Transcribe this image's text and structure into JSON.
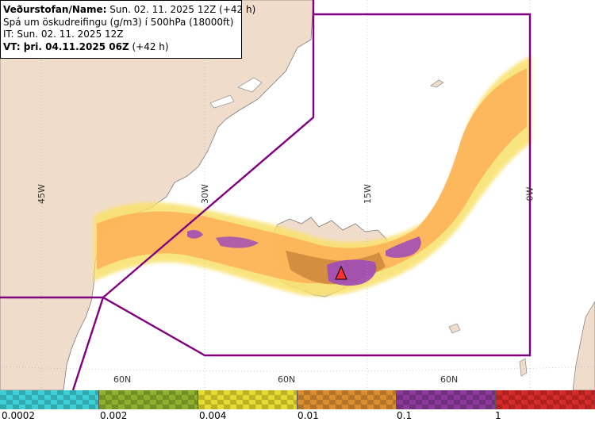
{
  "info": {
    "line1_label": "Veðurstofan/Name:",
    "line1_value": " Sun. 02. 11. 2025 12Z (+42 h)",
    "line2": "Spá um öskudreifingu (g/m3) í 500hPa (18000ft)",
    "line3": "IT: Sun. 02. 11. 2025 12Z",
    "line4_label": "VT: þri. 04.11.2025 06Z",
    "line4_value": " (+42 h)"
  },
  "map": {
    "longitude_labels": [
      "45W",
      "30W",
      "15W",
      "0W"
    ],
    "latitude_labels": [
      "60N",
      "60N",
      "60N"
    ],
    "colors": {
      "land": "#f0dccb",
      "sea": "#ffffff",
      "fir_boundary": "#800080",
      "ash_low": "#f9e16a",
      "ash_mid": "#fdb45a",
      "ash_high": "#cf8a3c",
      "ash_very_high": "#a24fb5"
    }
  },
  "legend": {
    "ticks": [
      "0.0002",
      "0.002",
      "0.004",
      "0.01",
      "0.1",
      "1"
    ],
    "segments": [
      {
        "name": "cyan",
        "color": "#3ccfd6"
      },
      {
        "name": "olive",
        "color": "#8fb02c"
      },
      {
        "name": "yellow",
        "color": "#e6db2e"
      },
      {
        "name": "orange",
        "color": "#d98d2e"
      },
      {
        "name": "purple",
        "color": "#8b3a9a"
      },
      {
        "name": "red",
        "color": "#d62a2a"
      }
    ]
  }
}
